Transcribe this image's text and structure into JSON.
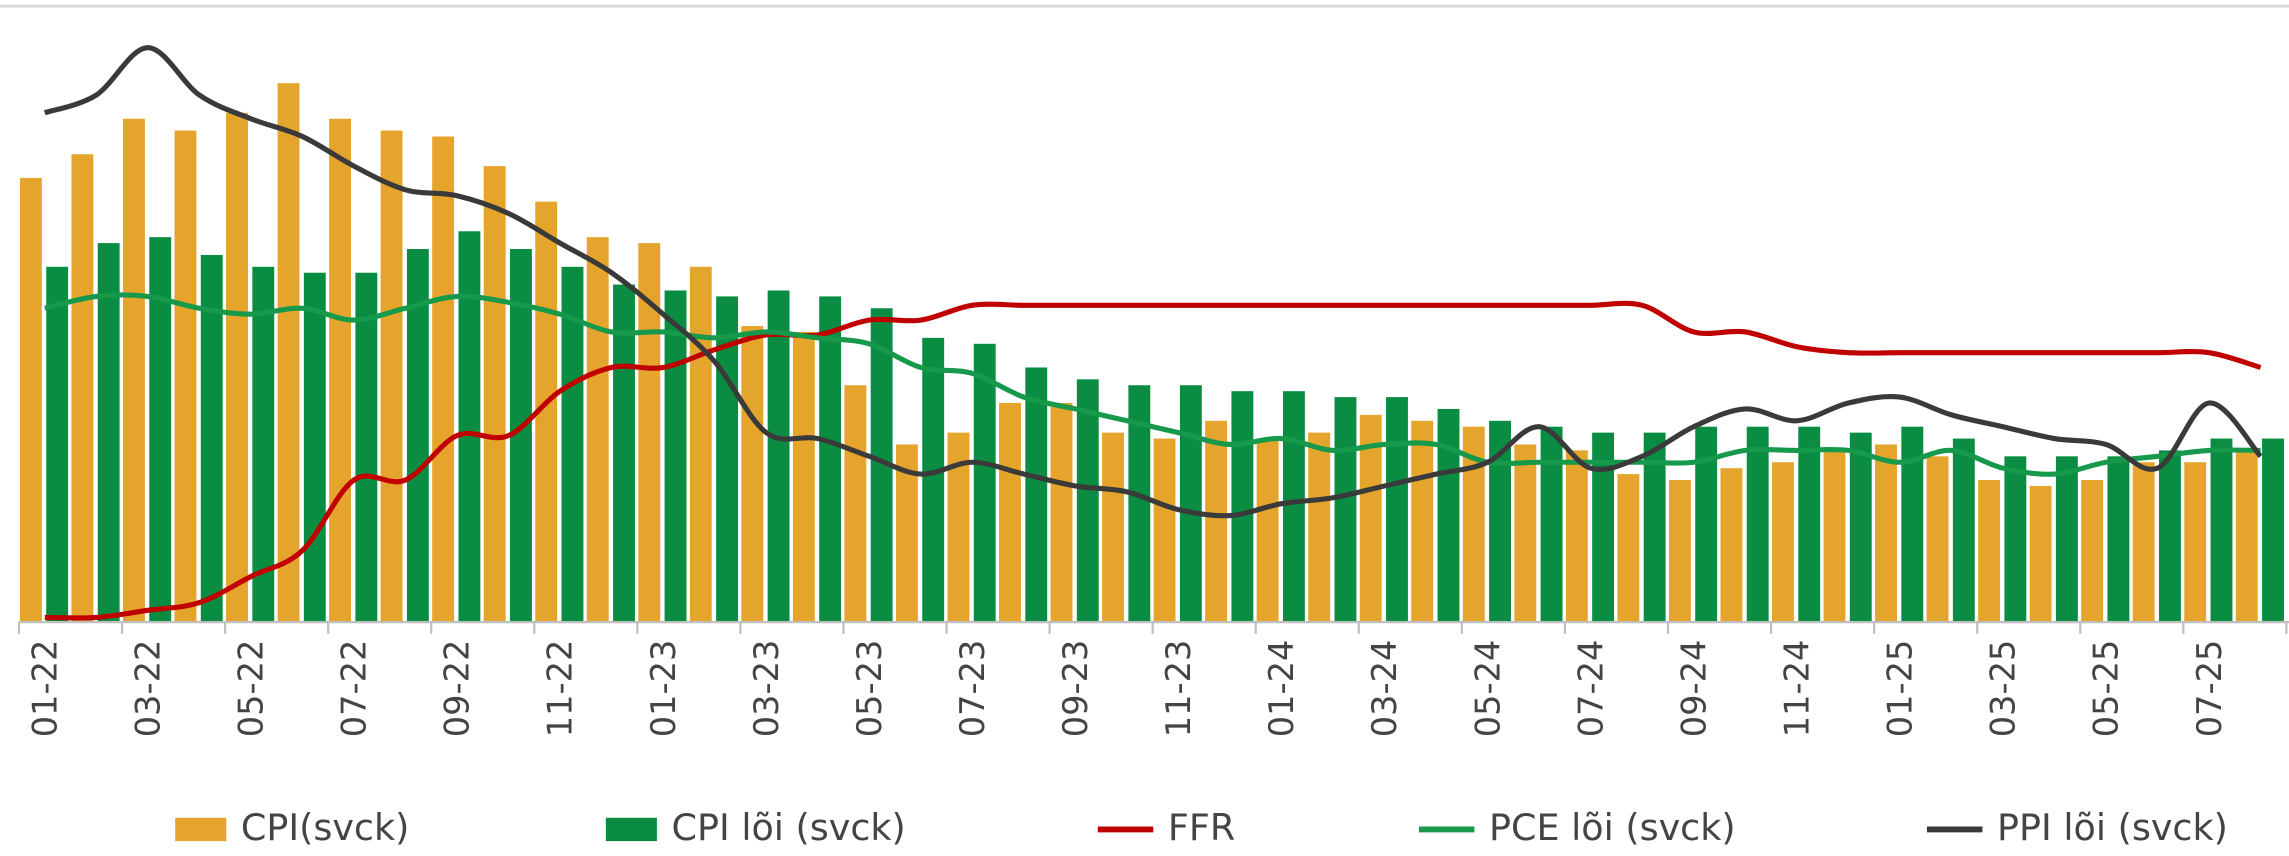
{
  "chart_data": {
    "type": "bar",
    "categories": [
      "01-22",
      null,
      "03-22",
      null,
      "05-22",
      null,
      "07-22",
      null,
      "09-22",
      null,
      "11-22",
      null,
      "01-23",
      null,
      "03-23",
      null,
      "05-23",
      null,
      "07-23",
      null,
      "09-23",
      null,
      "11-23",
      null,
      "01-24",
      null,
      "03-24",
      null,
      "05-24",
      null,
      "07-24",
      null,
      "09-24",
      null,
      "11-24",
      null,
      "01-25",
      null,
      "03-25",
      null,
      "05-25",
      null,
      "07-25",
      null
    ],
    "ylim": [
      0,
      10.5
    ],
    "series": [
      {
        "name": "CPI(svck)",
        "type": "bar",
        "color": "#e5a42c",
        "values": [
          7.5,
          7.9,
          8.5,
          8.3,
          8.6,
          9.1,
          8.5,
          8.3,
          8.2,
          7.7,
          7.1,
          6.5,
          6.4,
          6.0,
          5.0,
          4.9,
          4.0,
          3.0,
          3.2,
          3.7,
          3.7,
          3.2,
          3.1,
          3.4,
          3.1,
          3.2,
          3.5,
          3.4,
          3.3,
          3.0,
          2.9,
          2.5,
          2.4,
          2.6,
          2.7,
          2.9,
          3.0,
          2.8,
          2.4,
          2.3,
          2.4,
          2.7,
          2.7,
          2.9
        ]
      },
      {
        "name": "CPI lõi (svck)",
        "type": "bar",
        "color": "#0a8d43",
        "values": [
          6.0,
          6.4,
          6.5,
          6.2,
          6.0,
          5.9,
          5.9,
          6.3,
          6.6,
          6.3,
          6.0,
          5.7,
          5.6,
          5.5,
          5.6,
          5.5,
          5.3,
          4.8,
          4.7,
          4.3,
          4.1,
          4.0,
          4.0,
          3.9,
          3.9,
          3.8,
          3.8,
          3.6,
          3.4,
          3.3,
          3.2,
          3.2,
          3.3,
          3.3,
          3.3,
          3.2,
          3.3,
          3.1,
          2.8,
          2.8,
          2.8,
          2.9,
          3.1,
          3.1
        ]
      },
      {
        "name": "FFR",
        "type": "line",
        "color": "#c00000",
        "values": [
          0.08,
          0.08,
          0.2,
          0.33,
          0.77,
          1.21,
          2.4,
          2.4,
          3.15,
          3.15,
          3.9,
          4.3,
          4.3,
          4.6,
          4.85,
          4.85,
          5.1,
          5.1,
          5.35,
          5.35,
          5.35,
          5.35,
          5.35,
          5.35,
          5.35,
          5.35,
          5.35,
          5.35,
          5.35,
          5.35,
          5.35,
          5.35,
          4.9,
          4.9,
          4.65,
          4.55,
          4.55,
          4.55,
          4.55,
          4.55,
          4.55,
          4.55,
          4.55,
          4.3
        ]
      },
      {
        "name": "PCE lõi (svck)",
        "type": "line",
        "color": "#17994b",
        "values": [
          5.3,
          5.5,
          5.5,
          5.3,
          5.2,
          5.3,
          5.1,
          5.3,
          5.5,
          5.4,
          5.2,
          4.9,
          4.9,
          4.8,
          4.9,
          4.8,
          4.7,
          4.3,
          4.2,
          3.8,
          3.6,
          3.4,
          3.2,
          3.0,
          3.1,
          2.9,
          3.0,
          3.0,
          2.7,
          2.7,
          2.7,
          2.7,
          2.7,
          2.9,
          2.9,
          2.9,
          2.7,
          2.9,
          2.6,
          2.5,
          2.7,
          2.8,
          2.9,
          2.9
        ]
      },
      {
        "name": "PPI lõi (svck)",
        "type": "line",
        "color": "#3a3a3a",
        "values": [
          8.6,
          8.9,
          9.7,
          8.9,
          8.5,
          8.2,
          7.7,
          7.3,
          7.2,
          6.9,
          6.4,
          5.9,
          5.2,
          4.4,
          3.2,
          3.1,
          2.8,
          2.5,
          2.7,
          2.5,
          2.3,
          2.2,
          1.9,
          1.8,
          2.0,
          2.1,
          2.3,
          2.5,
          2.7,
          3.3,
          2.6,
          2.8,
          3.3,
          3.6,
          3.4,
          3.7,
          3.8,
          3.5,
          3.3,
          3.1,
          3.0,
          2.6,
          3.7,
          2.8
        ]
      }
    ]
  }
}
